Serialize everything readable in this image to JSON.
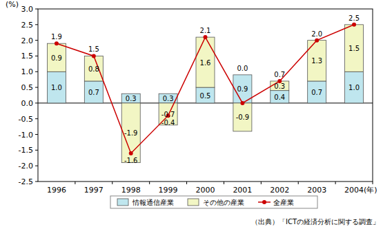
{
  "chart_data": {
    "type": "bar",
    "stacked": true,
    "data_labels": true,
    "grid": false,
    "legend": "bottom",
    "y_label": "(%)",
    "x_label": "(年)",
    "annotations": [
      "（出典）「ICTの経済分析に関する調査」"
    ],
    "categories": [
      "1996",
      "1997",
      "1998",
      "1999",
      "2000",
      "2001",
      "2002",
      "2003",
      "2004"
    ],
    "ylim": [
      -2.5,
      3.0
    ],
    "yticks": [
      {
        "value": -2.5,
        "label": "-2.5"
      },
      {
        "value": -2.0,
        "label": "-2.0"
      },
      {
        "value": -1.5,
        "label": "-1.5"
      },
      {
        "value": -1.0,
        "label": "-1.0"
      },
      {
        "value": -0.5,
        "label": "-0.5"
      },
      {
        "value": 0.0,
        "label": "0.0"
      },
      {
        "value": 0.5,
        "label": "0.5"
      },
      {
        "value": 1.0,
        "label": "1.0"
      },
      {
        "value": 1.5,
        "label": "1.5"
      },
      {
        "value": 2.0,
        "label": "2.0"
      },
      {
        "value": 2.5,
        "label": "2.5"
      },
      {
        "value": 3.0,
        "label": "3.0"
      }
    ],
    "series": [
      {
        "name": "情報通信産業",
        "type": "bar",
        "color": "#bfe6ee",
        "values": [
          1.0,
          0.7,
          0.3,
          0.3,
          0.5,
          0.9,
          0.4,
          0.7,
          1.0
        ],
        "value_labels": [
          "1.0",
          "0.7",
          "0.3",
          "0.3",
          "0.5",
          "0.9",
          "0.4",
          "0.7",
          "1.0"
        ]
      },
      {
        "name": "その他の産業",
        "type": "bar",
        "color": "#f2f6c4",
        "values": [
          0.9,
          0.8,
          -1.9,
          -0.7,
          1.6,
          -0.9,
          0.3,
          1.3,
          1.5
        ],
        "value_labels": [
          "0.9",
          "0.8",
          "-1.9",
          "-0.7",
          "1.6",
          "-0.9",
          "0.3",
          "1.3",
          "1.5"
        ]
      },
      {
        "name": "全産業",
        "type": "line",
        "color": "#cc0000",
        "marker": "circle",
        "values": [
          1.9,
          1.5,
          -1.6,
          -0.4,
          2.1,
          0.0,
          0.7,
          2.0,
          2.5
        ],
        "value_labels": [
          "1.9",
          "1.5",
          "-1.6",
          "-0.4",
          "2.1",
          "0.0",
          "0.7",
          "2.0",
          "2.5"
        ]
      }
    ]
  }
}
